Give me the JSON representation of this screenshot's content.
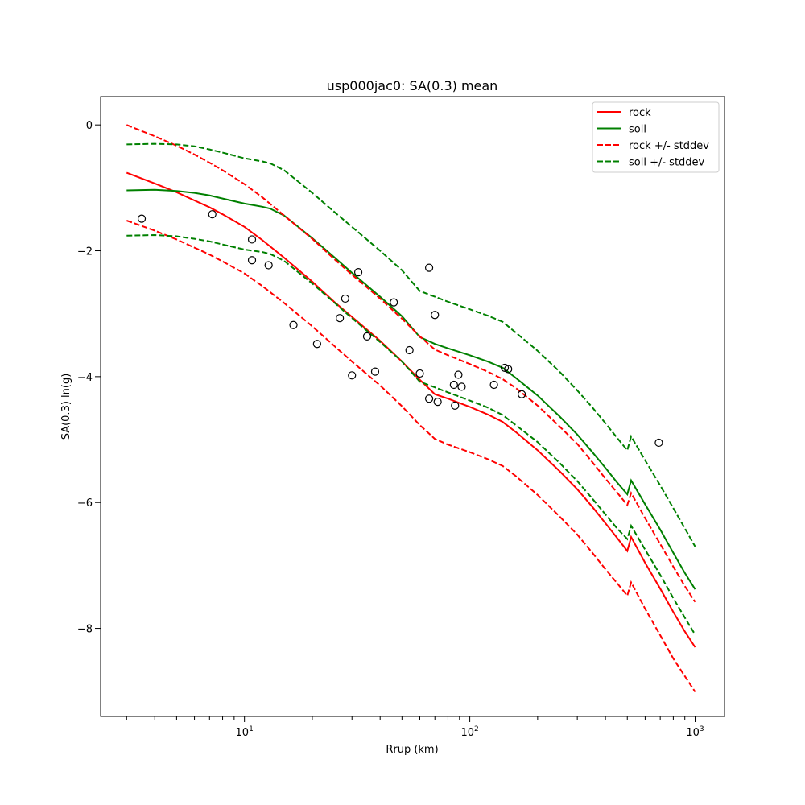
{
  "chart_data": {
    "type": "line",
    "title": "usp000jac0: SA(0.3) mean",
    "xlabel": "Rrup (km)",
    "ylabel": "SA(0.3) ln(g)",
    "xscale": "log",
    "xlim": [
      2.3,
      1350
    ],
    "ylim": [
      -9.4,
      0.45
    ],
    "grid": false,
    "legend_position": "upper right",
    "x_ticks": [
      {
        "value": 10,
        "base": "10",
        "exp": "1"
      },
      {
        "value": 100,
        "base": "10",
        "exp": "2"
      },
      {
        "value": 1000,
        "base": "10",
        "exp": "3"
      }
    ],
    "y_ticks": [
      {
        "value": 0,
        "label": "0"
      },
      {
        "value": -2,
        "label": "−2"
      },
      {
        "value": -4,
        "label": "−4"
      },
      {
        "value": -6,
        "label": "−6"
      },
      {
        "value": -8,
        "label": "−8"
      }
    ],
    "series": [
      {
        "name": "rock",
        "color": "#ff0000",
        "dash": "solid",
        "x": [
          3,
          4,
          5,
          6,
          7,
          8,
          10,
          12,
          15,
          20,
          25,
          30,
          40,
          50,
          60,
          70,
          80,
          100,
          120,
          140,
          160,
          200,
          250,
          300,
          350,
          400,
          450,
          500,
          520,
          600,
          700,
          800,
          900,
          1000
        ],
        "y": [
          -0.76,
          -0.93,
          -1.07,
          -1.2,
          -1.31,
          -1.42,
          -1.62,
          -1.83,
          -2.11,
          -2.49,
          -2.81,
          -3.05,
          -3.43,
          -3.76,
          -4.05,
          -4.28,
          -4.35,
          -4.48,
          -4.6,
          -4.72,
          -4.88,
          -5.17,
          -5.5,
          -5.79,
          -6.07,
          -6.33,
          -6.56,
          -6.77,
          -6.55,
          -6.96,
          -7.37,
          -7.74,
          -8.05,
          -8.3
        ]
      },
      {
        "name": "soil",
        "color": "#008000",
        "dash": "solid",
        "x": [
          3,
          4,
          5,
          6,
          7,
          8,
          10,
          12,
          13,
          15,
          20,
          25,
          30,
          40,
          50,
          60,
          70,
          80,
          100,
          120,
          140,
          160,
          200,
          250,
          300,
          350,
          400,
          450,
          500,
          520,
          600,
          700,
          800,
          900,
          1000
        ],
        "y": [
          -1.04,
          -1.03,
          -1.05,
          -1.08,
          -1.12,
          -1.17,
          -1.25,
          -1.3,
          -1.33,
          -1.44,
          -1.8,
          -2.1,
          -2.35,
          -2.73,
          -3.04,
          -3.37,
          -3.48,
          -3.55,
          -3.66,
          -3.76,
          -3.86,
          -4.02,
          -4.3,
          -4.63,
          -4.92,
          -5.2,
          -5.45,
          -5.68,
          -5.87,
          -5.65,
          -6.03,
          -6.43,
          -6.8,
          -7.12,
          -7.38
        ]
      },
      {
        "name": "rock +/- stddev",
        "color": "#ff0000",
        "dash": "dashed",
        "x": [
          3,
          4,
          5,
          6,
          7,
          8,
          10,
          12,
          15,
          20,
          25,
          30,
          40,
          50,
          60,
          70,
          80,
          100,
          120,
          140,
          160,
          200,
          250,
          300,
          350,
          400,
          450,
          500,
          520,
          600,
          700,
          800,
          900,
          1000
        ],
        "y": [
          0.0,
          -0.18,
          -0.33,
          -0.47,
          -0.6,
          -0.72,
          -0.94,
          -1.15,
          -1.44,
          -1.81,
          -2.13,
          -2.38,
          -2.76,
          -3.08,
          -3.36,
          -3.57,
          -3.66,
          -3.8,
          -3.92,
          -4.04,
          -4.18,
          -4.46,
          -4.79,
          -5.07,
          -5.36,
          -5.62,
          -5.84,
          -6.04,
          -5.85,
          -6.25,
          -6.66,
          -7.02,
          -7.33,
          -7.58
        ]
      },
      {
        "name": "rock +/- stddev (lower)",
        "color": "#ff0000",
        "dash": "dashed",
        "x": [
          3,
          4,
          5,
          6,
          7,
          8,
          10,
          12,
          15,
          20,
          25,
          30,
          40,
          50,
          60,
          70,
          80,
          100,
          120,
          140,
          160,
          200,
          250,
          300,
          350,
          400,
          450,
          500,
          520,
          600,
          700,
          800,
          900,
          1000
        ],
        "y": [
          -1.52,
          -1.68,
          -1.82,
          -1.95,
          -2.06,
          -2.17,
          -2.36,
          -2.56,
          -2.83,
          -3.2,
          -3.51,
          -3.76,
          -4.14,
          -4.47,
          -4.77,
          -4.99,
          -5.08,
          -5.2,
          -5.31,
          -5.42,
          -5.58,
          -5.88,
          -6.22,
          -6.51,
          -6.8,
          -7.06,
          -7.28,
          -7.48,
          -7.27,
          -7.69,
          -8.11,
          -8.48,
          -8.76,
          -9.01
        ]
      },
      {
        "name": "soil +/- stddev",
        "color": "#008000",
        "dash": "dashed",
        "x": [
          3,
          4,
          5,
          6,
          7,
          8,
          10,
          12,
          13,
          15,
          20,
          25,
          30,
          40,
          50,
          60,
          70,
          80,
          100,
          120,
          140,
          160,
          200,
          250,
          300,
          350,
          400,
          450,
          500,
          520,
          600,
          700,
          800,
          900,
          1000
        ],
        "y": [
          -0.31,
          -0.3,
          -0.31,
          -0.34,
          -0.39,
          -0.44,
          -0.53,
          -0.58,
          -0.61,
          -0.72,
          -1.08,
          -1.38,
          -1.62,
          -2.0,
          -2.31,
          -2.64,
          -2.73,
          -2.81,
          -2.93,
          -3.03,
          -3.13,
          -3.3,
          -3.59,
          -3.92,
          -4.22,
          -4.49,
          -4.74,
          -4.97,
          -5.17,
          -4.95,
          -5.33,
          -5.73,
          -6.09,
          -6.41,
          -6.7
        ]
      },
      {
        "name": "soil +/- stddev (lower)",
        "color": "#008000",
        "dash": "dashed",
        "x": [
          3,
          4,
          5,
          6,
          7,
          8,
          10,
          12,
          13,
          15,
          20,
          25,
          30,
          40,
          50,
          60,
          70,
          80,
          100,
          120,
          140,
          160,
          200,
          250,
          300,
          350,
          400,
          450,
          500,
          520,
          600,
          700,
          800,
          900,
          1000
        ],
        "y": [
          -1.76,
          -1.75,
          -1.77,
          -1.81,
          -1.85,
          -1.9,
          -1.98,
          -2.02,
          -2.05,
          -2.16,
          -2.52,
          -2.82,
          -3.07,
          -3.45,
          -3.76,
          -4.08,
          -4.17,
          -4.25,
          -4.38,
          -4.49,
          -4.61,
          -4.77,
          -5.04,
          -5.37,
          -5.66,
          -5.94,
          -6.19,
          -6.41,
          -6.58,
          -6.37,
          -6.75,
          -7.15,
          -7.52,
          -7.83,
          -8.1
        ]
      }
    ],
    "observations": {
      "x": [
        3.5,
        7.2,
        10.8,
        10.8,
        12.8,
        16.5,
        21,
        26.5,
        28,
        30,
        32,
        35,
        38,
        46,
        54,
        60,
        66,
        66,
        70,
        72,
        85,
        86,
        89,
        92,
        128,
        143,
        148,
        170,
        690
      ],
      "y": [
        -1.49,
        -1.42,
        -1.82,
        -2.15,
        -2.23,
        -3.18,
        -3.48,
        -3.07,
        -2.76,
        -3.98,
        -2.34,
        -3.36,
        -3.92,
        -2.82,
        -3.58,
        -3.95,
        -4.35,
        -2.27,
        -3.02,
        -4.4,
        -4.13,
        -4.46,
        -3.97,
        -4.16,
        -4.13,
        -3.86,
        -3.88,
        -4.28,
        -5.05
      ]
    },
    "legend": [
      {
        "label": "rock",
        "color": "#ff0000",
        "dash": "solid"
      },
      {
        "label": "soil",
        "color": "#008000",
        "dash": "solid"
      },
      {
        "label": "rock +/- stddev",
        "color": "#ff0000",
        "dash": "dashed"
      },
      {
        "label": "soil +/- stddev",
        "color": "#008000",
        "dash": "dashed"
      }
    ]
  }
}
